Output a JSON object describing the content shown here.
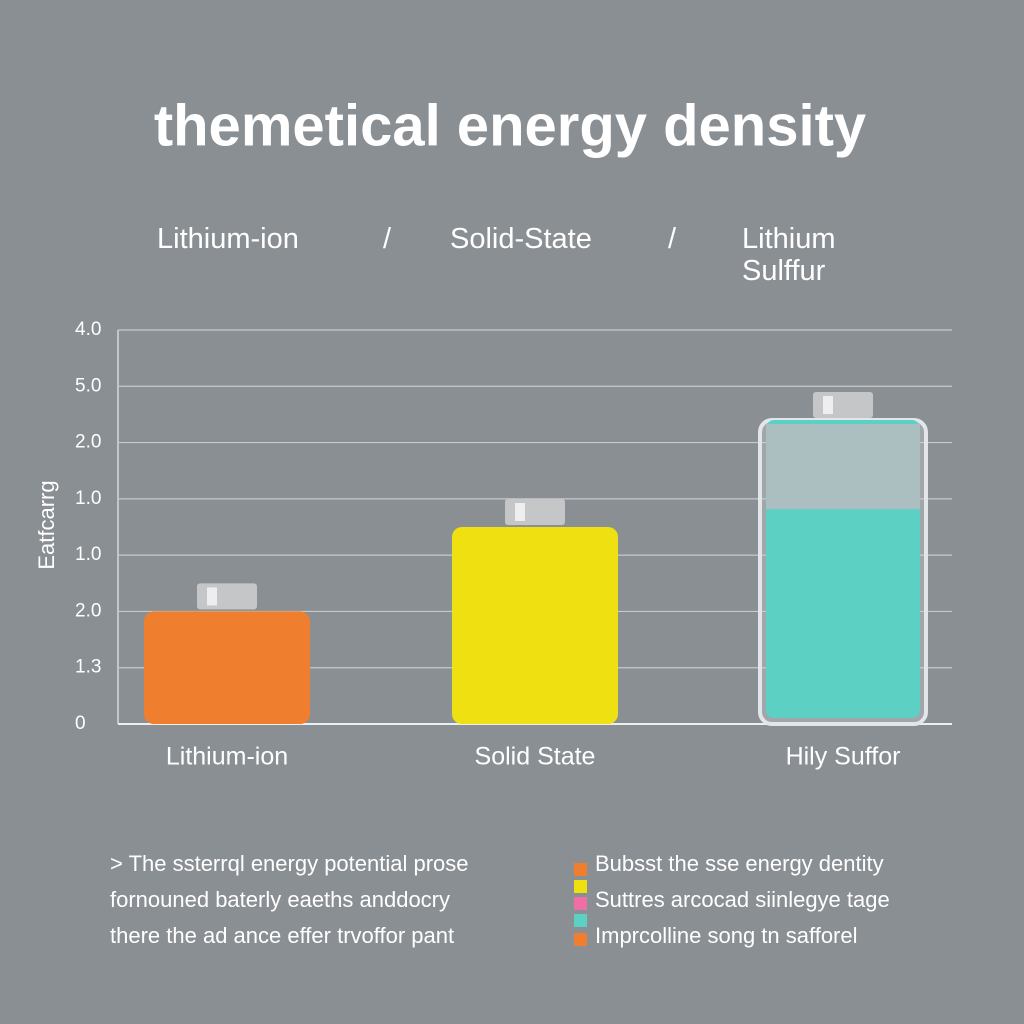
{
  "chart_data": {
    "type": "bar",
    "title": "themetical energy density",
    "header_labels": [
      "Lithium-ion",
      "/",
      "Solid-State",
      "/",
      "Lithium Sulffur"
    ],
    "y_label": "Eatfcarrg",
    "categories": [
      "Lithium-ion",
      "Solid State",
      "Hily Suffor"
    ],
    "values": [
      2.0,
      3.5,
      5.4
    ],
    "colors": [
      "#ef7f2e",
      "#efe011",
      "#5dd0c4"
    ],
    "ylim": [
      0,
      7
    ],
    "yticks": [
      0,
      {
        "value": 1,
        "label": "1.3"
      },
      {
        "value": 2,
        "label": "2.0"
      },
      {
        "value": 3,
        "label": "1.0"
      },
      {
        "value": 4,
        "label": "1.0"
      },
      {
        "value": 5,
        "label": "2.0"
      },
      {
        "value": 6,
        "label": "5.0"
      },
      {
        "value": 7,
        "label": "4.0"
      }
    ],
    "grid": true,
    "notes": [
      "> The ssterrql energy potential prose",
      "fornouned baterly eaeths anddocry",
      "there the ad ance effer trvoffor pant"
    ],
    "legend_notes": [
      "Bubsst the sse energy dentity",
      "Suttres arcocad siinlegye tage",
      "Imprcolline song tn safforel"
    ]
  }
}
